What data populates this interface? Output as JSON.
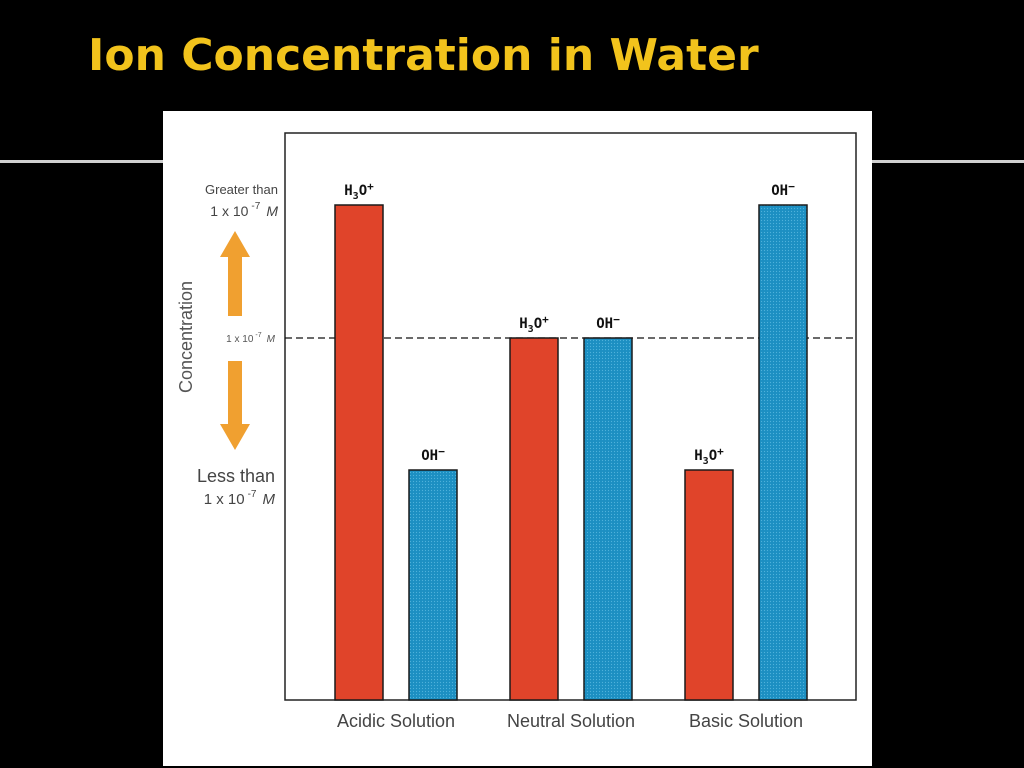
{
  "slide": {
    "title": "Ion Concentration in Water"
  },
  "colors": {
    "background": "#000000",
    "title": "#f2c31c",
    "h3o_bar": "#e0442a",
    "oh_bar": "#1c8fc2",
    "arrow": "#f0a030"
  },
  "chart_data": {
    "type": "bar",
    "categories": [
      "Acidic Solution",
      "Neutral Solution",
      "Basic Solution"
    ],
    "series": [
      {
        "name": "H3O+",
        "label_main": "H",
        "label_sub": "3",
        "label_tail": "O",
        "label_sup": "+",
        "values": [
          2,
          1,
          0
        ]
      },
      {
        "name": "OH−",
        "label_main": "OH",
        "label_sup": "−",
        "values": [
          0,
          1,
          2
        ]
      }
    ],
    "value_levels": [
      "less",
      "equal",
      "greater"
    ],
    "ylabel": "Concentration",
    "reference_line": {
      "level": 1,
      "label": "1 x 10",
      "exponent": "-7",
      "unit": "M",
      "style": "dashed"
    },
    "y_annotations": {
      "top": {
        "line1": "Greater than",
        "line2": "1 x 10",
        "exponent": "-7",
        "unit": "M"
      },
      "bottom": {
        "line1": "Less than",
        "line2": "1 x 10",
        "exponent": "-7",
        "unit": "M"
      }
    },
    "grid": false,
    "legend": "none"
  }
}
